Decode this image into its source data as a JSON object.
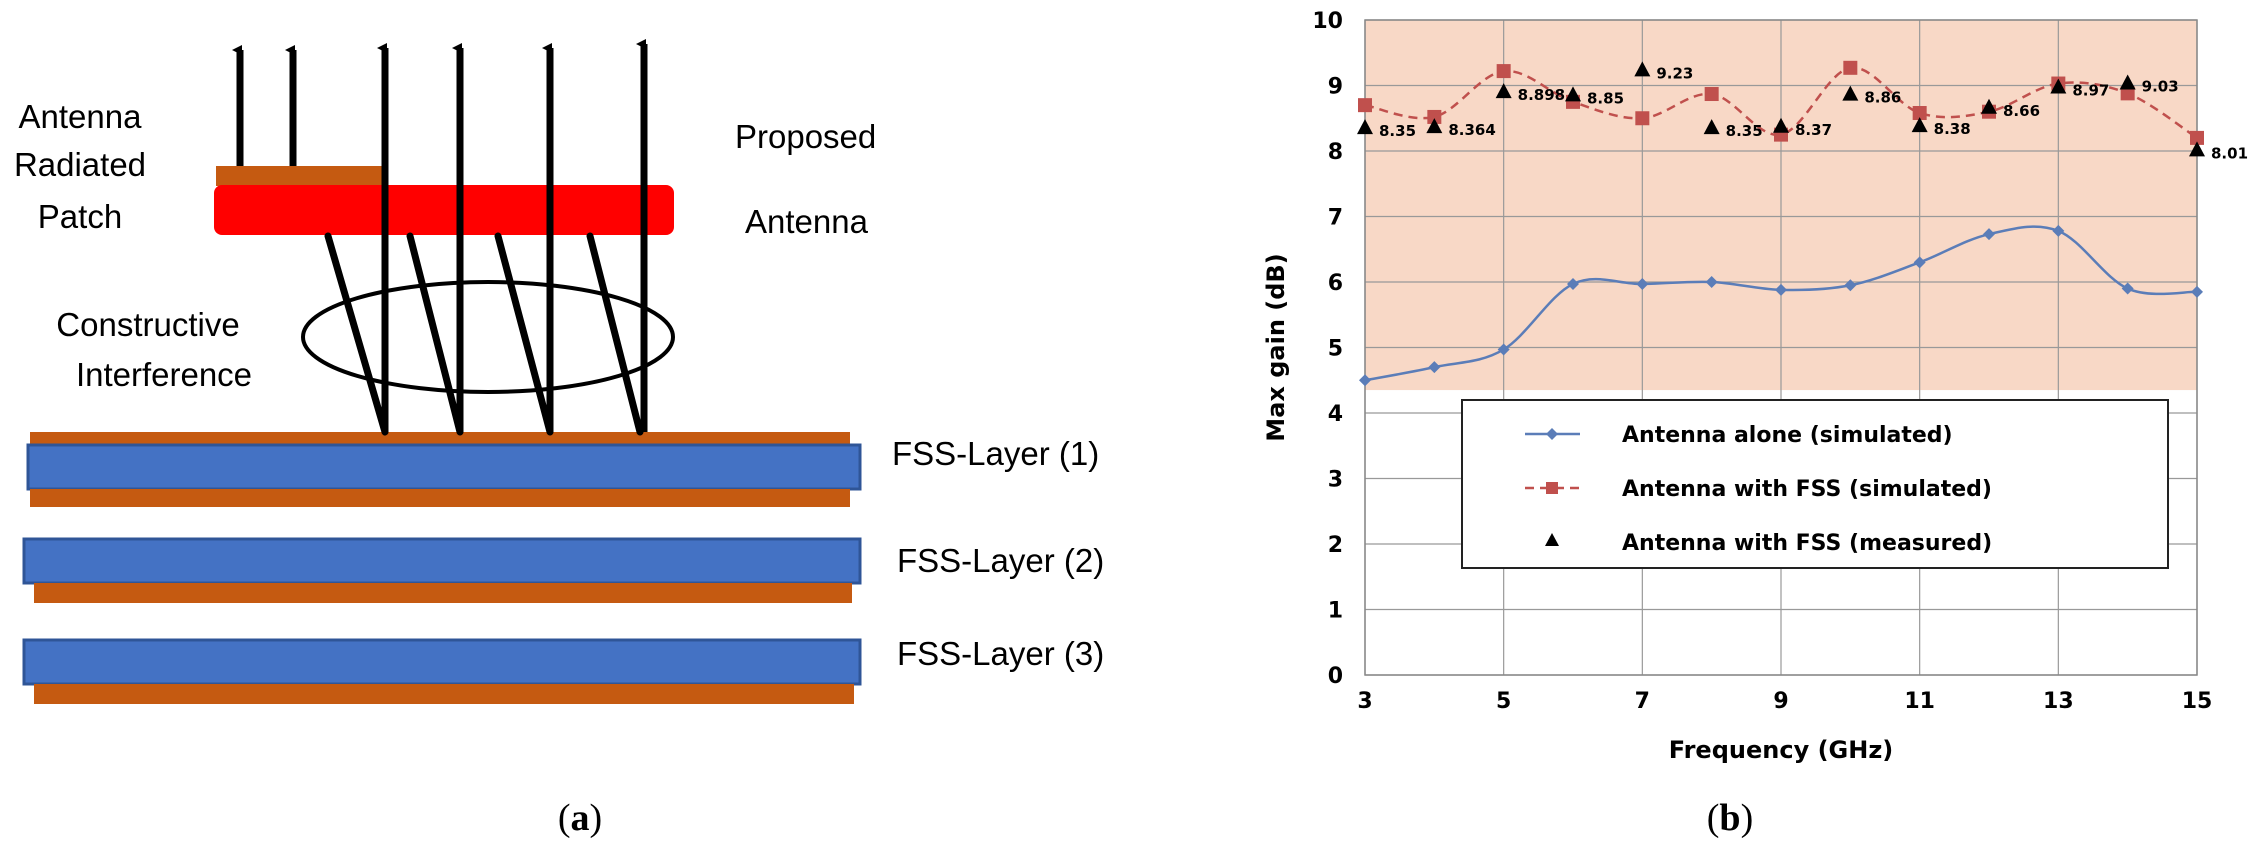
{
  "panel_a": {
    "labels": {
      "antenna_radiated_patch": [
        "Antenna",
        "Radiated",
        "Patch"
      ],
      "proposed_antenna": [
        "Proposed",
        "Antenna"
      ],
      "constructive_interference": [
        "Constructive",
        "Interference"
      ],
      "fss_layer_1": "FSS-Layer (1)",
      "fss_layer_2": "FSS-Layer (2)",
      "fss_layer_3": "FSS-Layer (3)"
    },
    "colors": {
      "substrate": "#4472C4",
      "substrate_edge": "#2F5597",
      "metal": "#C55A11",
      "patch": "#FF0000",
      "arrow": "#000000"
    },
    "caption": {
      "open": "(",
      "letter": "a",
      "close": ")"
    }
  },
  "panel_b": {
    "caption": {
      "open": "(",
      "letter": "b",
      "close": ")"
    }
  },
  "chart_data": {
    "type": "line",
    "xlabel": "Frequency (GHz)",
    "ylabel": "Max gain (dB)",
    "xlim": [
      3,
      15
    ],
    "ylim": [
      0,
      10
    ],
    "xticks": [
      3,
      5,
      7,
      9,
      11,
      13,
      15
    ],
    "yticks": [
      0,
      1,
      2,
      3,
      4,
      5,
      6,
      7,
      8,
      9,
      10
    ],
    "grid": true,
    "legend_position": "center",
    "shaded_band": {
      "y_from": 4.35,
      "y_to": 10,
      "color": "#F8D8C6"
    },
    "series": [
      {
        "name": "Antenna alone (simulated)",
        "color": "#5B7DB8",
        "marker": "diamond",
        "line": "solid",
        "x": [
          3,
          4,
          5,
          6,
          7,
          8,
          9,
          10,
          11,
          12,
          13,
          14,
          15
        ],
        "y": [
          4.5,
          4.7,
          4.97,
          5.97,
          5.97,
          6.0,
          5.88,
          5.95,
          6.3,
          6.73,
          6.78,
          5.9,
          5.85
        ]
      },
      {
        "name": "Antenna with FSS (simulated)",
        "color": "#C0504D",
        "marker": "square",
        "line": "dashed",
        "x": [
          3,
          4,
          5,
          6,
          7,
          8,
          9,
          10,
          11,
          12,
          13,
          14,
          15
        ],
        "y": [
          8.7,
          8.52,
          9.22,
          8.75,
          8.5,
          8.87,
          8.25,
          9.27,
          8.58,
          8.6,
          9.03,
          8.88,
          8.2
        ]
      },
      {
        "name": "Antenna with FSS (measured)",
        "color": "#000000",
        "marker": "triangle",
        "line": "none",
        "x": [
          3,
          4,
          5,
          6,
          7,
          8,
          9,
          10,
          11,
          12,
          13,
          14,
          15
        ],
        "y": [
          8.35,
          8.364,
          8.898,
          8.85,
          9.23,
          8.35,
          8.37,
          8.86,
          8.38,
          8.66,
          8.97,
          9.03,
          8.01
        ]
      }
    ],
    "annotations": [
      "8.35",
      "8.364",
      "8.898",
      "8.85",
      "9.23",
      "8.35",
      "8.37",
      "8.86",
      "8.38",
      "8.66",
      "8.97",
      "9.03",
      "8.01"
    ]
  }
}
